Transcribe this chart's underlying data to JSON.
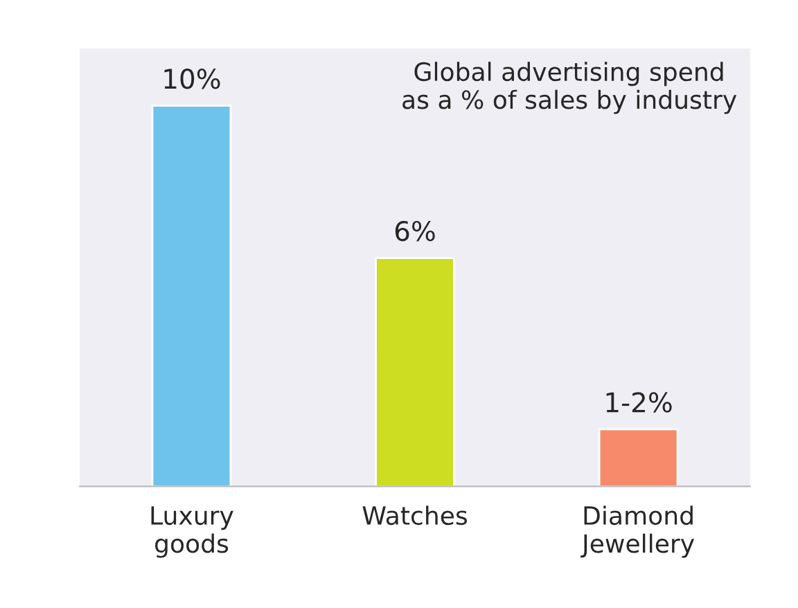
{
  "chart_data": {
    "type": "bar",
    "title": "Global advertising spend\nas a % of sales by industry",
    "categories": [
      "Luxury\ngoods",
      "Watches",
      "Diamond\nJewellery"
    ],
    "values": [
      10,
      6,
      1.5
    ],
    "colors": [
      "#6ec3ec",
      "#ccdd22",
      "#f88a6c"
    ],
    "value_labels": [
      "10%",
      "6%",
      "1-2%"
    ],
    "ylim": [
      0,
      11.5
    ],
    "tick_labels": "x",
    "grid": false
  }
}
